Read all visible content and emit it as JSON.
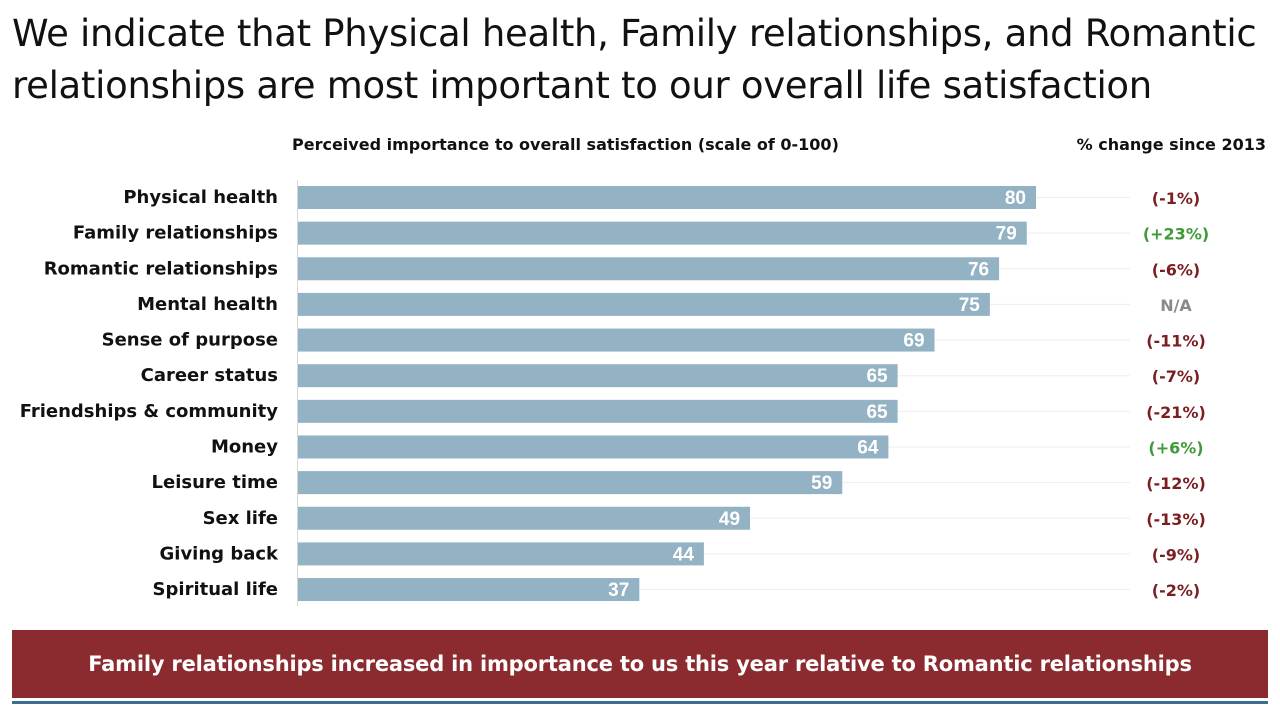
{
  "title": "We indicate that Physical health, Family relationships, and Romantic relationships are most important to our overall life satisfaction",
  "chart_header": "Perceived importance to overall satisfaction (scale of 0-100)",
  "change_header": "% change since 2013",
  "footer_text": "Family relationships increased in importance to us this year relative to Romantic relationships",
  "colors": {
    "bar": "#93b3c4",
    "negative": "#7b1e22",
    "positive": "#3f9a3a",
    "neutral": "#8a8a8a",
    "footer": "#8b2b2f"
  },
  "chart_data": {
    "type": "bar",
    "orientation": "horizontal",
    "xlim": [
      0,
      100
    ],
    "categories": [
      "Physical health",
      "Family relationships",
      "Romantic relationships",
      "Mental health",
      "Sense of purpose",
      "Career status",
      "Friendships & community",
      "Money",
      "Leisure time",
      "Sex life",
      "Giving back",
      "Spiritual life"
    ],
    "values": [
      80,
      79,
      76,
      75,
      69,
      65,
      65,
      64,
      59,
      49,
      44,
      37
    ],
    "changes": [
      "(-1%)",
      "(+23%)",
      "(-6%)",
      "N/A",
      "(-11%)",
      "(-7%)",
      "(-21%)",
      "(+6%)",
      "(-12%)",
      "(-13%)",
      "(-9%)",
      "(-2%)"
    ],
    "change_signs": [
      "negative",
      "positive",
      "negative",
      "neutral",
      "negative",
      "negative",
      "negative",
      "positive",
      "negative",
      "negative",
      "negative",
      "negative"
    ]
  }
}
